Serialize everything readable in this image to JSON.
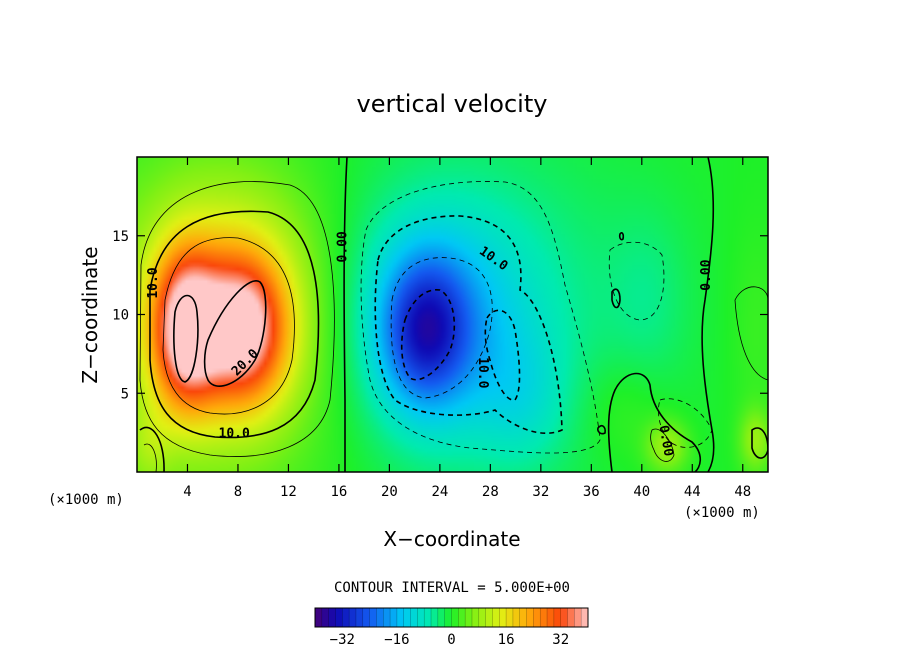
{
  "chart_data": {
    "type": "heatmap",
    "title": "vertical velocity",
    "xlabel": "X−coordinate",
    "ylabel": "Z−coordinate",
    "x_unit": "(×1000 m)",
    "y_unit": "(×1000 m)",
    "xlim": [
      0,
      50
    ],
    "ylim": [
      0,
      20
    ],
    "x_ticks": [
      4,
      8,
      12,
      16,
      20,
      24,
      28,
      32,
      36,
      40,
      44,
      48
    ],
    "y_ticks": [
      5,
      10,
      15
    ],
    "contour_interval_text": "CONTOUR INTERVAL = 5.000E+00",
    "contour_interval": 5.0,
    "colorbar": {
      "min": -40,
      "max": 40,
      "ticks": [
        -32,
        -16,
        0,
        16,
        32
      ],
      "tick_labels": [
        "−32",
        "−16",
        "0",
        "16",
        "32"
      ]
    },
    "contour_labels": [
      {
        "text": "10.0",
        "x": 1.2,
        "y": 12.0,
        "angle": -90
      },
      {
        "text": "20.0",
        "x": 8.5,
        "y": 7.0,
        "angle": -45
      },
      {
        "text": "10.0",
        "x": 7.7,
        "y": 2.5,
        "angle": 0
      },
      {
        "text": "0.00",
        "x": 16.2,
        "y": 14.3,
        "angle": -90
      },
      {
        "text": "10.0",
        "x": 28.3,
        "y": 13.6,
        "angle": 35
      },
      {
        "text": "10.0",
        "x": 27.5,
        "y": 6.3,
        "angle": 90
      },
      {
        "text": "0.00",
        "x": 45.0,
        "y": 12.5,
        "angle": -90
      },
      {
        "text": "0.00",
        "x": 42.0,
        "y": 2.0,
        "angle": 80
      }
    ],
    "features": [
      {
        "x": 3.8,
        "y": 9.0,
        "sx": 1.8,
        "sy": 3.4,
        "value": 32
      },
      {
        "x": 8.4,
        "y": 9.0,
        "sx": 2.4,
        "sy": 3.2,
        "value": 30
      },
      {
        "x": 7.0,
        "y": 10.5,
        "sx": 5.0,
        "sy": 5.5,
        "value": 14
      },
      {
        "x": 6.5,
        "y": 8.5,
        "sx": 10.0,
        "sy": 8.0,
        "value": 6
      },
      {
        "x": 1.0,
        "y": 1.5,
        "sx": 1.2,
        "sy": 1.8,
        "value": 5
      },
      {
        "x": 22.8,
        "y": 9.0,
        "sx": 2.4,
        "sy": 3.3,
        "value": -20
      },
      {
        "x": 24.0,
        "y": 9.5,
        "sx": 5.0,
        "sy": 5.0,
        "value": -12
      },
      {
        "x": 26.0,
        "y": 10.0,
        "sx": 9.5,
        "sy": 7.5,
        "value": -6
      },
      {
        "x": 30.5,
        "y": 4.5,
        "sx": 2.5,
        "sy": 3.0,
        "value": -5
      },
      {
        "x": 40.5,
        "y": 11.0,
        "sx": 2.2,
        "sy": 4.0,
        "value": -3
      },
      {
        "x": 42.0,
        "y": 1.6,
        "sx": 1.2,
        "sy": 1.2,
        "value": 9
      },
      {
        "x": 49.0,
        "y": 2.0,
        "sx": 0.9,
        "sy": 1.4,
        "value": 8
      },
      {
        "x": 38.5,
        "y": 4.0,
        "sx": 2.5,
        "sy": 2.5,
        "value": 3
      },
      {
        "x": 49.0,
        "y": 9.0,
        "sx": 1.5,
        "sy": 5.0,
        "value": 2
      }
    ]
  }
}
